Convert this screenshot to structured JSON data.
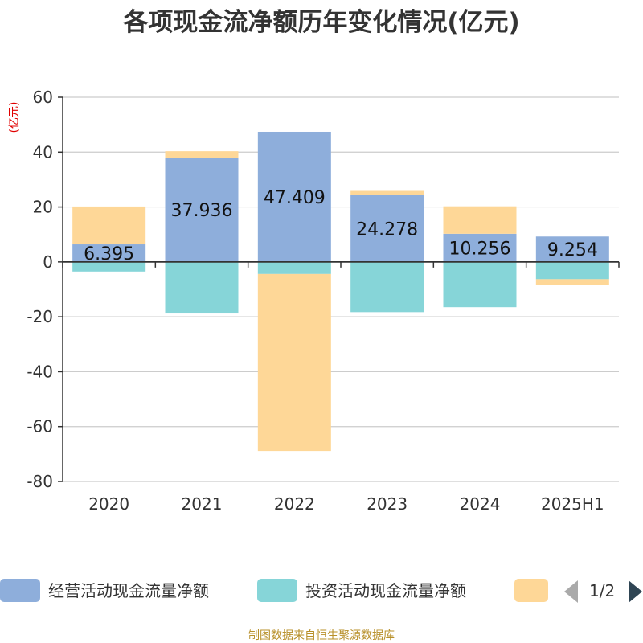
{
  "chart_data": {
    "type": "bar",
    "stacked": true,
    "title": "各项现金流净额历年变化情况(亿元)",
    "ylabel": "(亿元)",
    "xlabel": "",
    "categories": [
      "2020",
      "2021",
      "2022",
      "2023",
      "2024",
      "2025H1"
    ],
    "ylim": [
      -80,
      60
    ],
    "yticks": [
      60,
      40,
      20,
      0,
      -20,
      -40,
      -60,
      -80
    ],
    "grid": true,
    "series": [
      {
        "name": "经营活动现金流量净额",
        "color": "#8eaedb",
        "values": [
          6.395,
          37.936,
          47.409,
          24.278,
          10.256,
          9.254
        ],
        "labels": [
          "6.395",
          "37.936",
          "47.409",
          "24.278",
          "10.256",
          "9.254"
        ]
      },
      {
        "name": "投资活动现金流量净额",
        "color": "#86d5d8",
        "values": [
          -3.5,
          -18.8,
          -4.4,
          -18.3,
          -16.5,
          -6.3
        ]
      },
      {
        "name": "",
        "color": "#fed797",
        "values": [
          13.8,
          2.4,
          -64.5,
          1.6,
          10.0,
          -2.0
        ]
      }
    ],
    "legend": {
      "position": "bottom",
      "page": "1/2"
    }
  },
  "source_text": "制图数据来自恒生聚源数据库"
}
